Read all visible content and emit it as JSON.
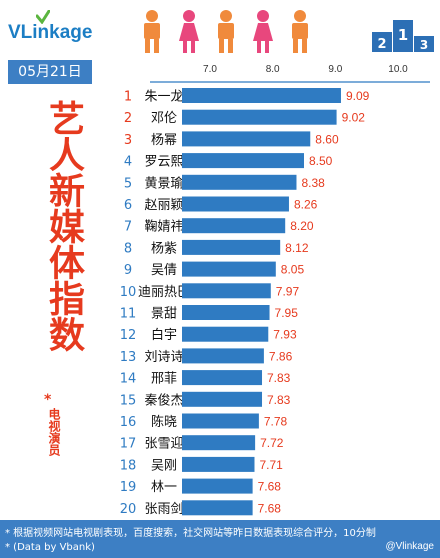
{
  "brand": {
    "logo_text": "VLinkage"
  },
  "date_label": "05月21日",
  "title_vertical": "艺人新媒体指数",
  "subtitle_mark": "*",
  "subtitle_vertical": "电视演员",
  "footer": {
    "note": "* 根据视频网站电视剧表现，百度搜索，社交网站等昨日数据表现综合评分，10分制",
    "data_source": "* (Data by Vbank)",
    "credit": "@Vlinkage"
  },
  "colors": {
    "bar": "#2f7bc2",
    "rank_top3": "#e63a1e",
    "rank_other": "#2f7bc2",
    "value": "#e63a1e",
    "title": "#e63a1e",
    "header_blue": "#3d7fc4"
  },
  "chart_data": {
    "type": "bar",
    "orientation": "horizontal",
    "title": "艺人新媒体指数",
    "xlim": [
      6.5,
      10.0
    ],
    "xticks": [
      7.0,
      8.0,
      9.0,
      10.0
    ],
    "xtick_labels": [
      "7.0",
      "8.0",
      "9.0",
      "10.0"
    ],
    "grid": false,
    "ranks": [
      "1",
      "2",
      "3",
      "4",
      "5",
      "6",
      "7",
      "8",
      "9",
      "10",
      "11",
      "12",
      "13",
      "14",
      "15",
      "16",
      "17",
      "18",
      "19",
      "20"
    ],
    "categories": [
      "朱一龙",
      "邓伦",
      "杨幂",
      "罗云熙",
      "黄景瑜",
      "赵丽颖",
      "鞠婧祎",
      "杨紫",
      "吴倩",
      "迪丽热巴",
      "景甜",
      "白宇",
      "刘诗诗",
      "邢菲",
      "秦俊杰",
      "陈晓",
      "张雪迎",
      "吴刚",
      "林一",
      "张雨剑"
    ],
    "values": [
      9.09,
      9.02,
      8.6,
      8.5,
      8.38,
      8.26,
      8.2,
      8.12,
      8.05,
      7.97,
      7.95,
      7.93,
      7.86,
      7.83,
      7.83,
      7.78,
      7.72,
      7.71,
      7.68,
      7.68
    ],
    "value_labels": [
      "9.09",
      "9.02",
      "8.60",
      "8.50",
      "8.38",
      "8.26",
      "8.20",
      "8.12",
      "8.05",
      "7.97",
      "7.95",
      "7.93",
      "7.86",
      "7.83",
      "7.83",
      "7.78",
      "7.72",
      "7.71",
      "7.68",
      "7.68"
    ]
  }
}
